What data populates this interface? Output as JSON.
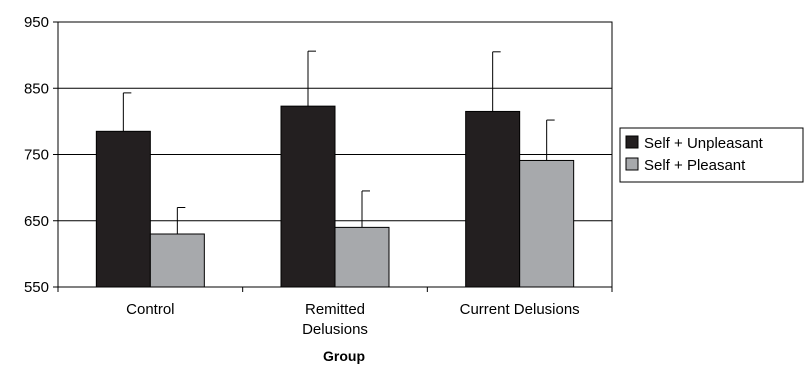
{
  "chart_data": {
    "type": "bar",
    "title": "",
    "xlabel": "Group",
    "ylabel": "",
    "categories": [
      [
        "Control"
      ],
      [
        "Remitted",
        "Delusions"
      ],
      [
        "Current Delusions"
      ]
    ],
    "series": [
      {
        "name": "Self + Unpleasant",
        "color": "#231f20",
        "values": [
          785,
          823,
          815
        ],
        "error_upper": [
          843,
          906,
          905
        ]
      },
      {
        "name": "Self + Pleasant",
        "color": "#a7a9ac",
        "values": [
          630,
          640,
          741
        ],
        "error_upper": [
          670,
          695,
          802
        ]
      }
    ],
    "ylim": [
      550,
      950
    ],
    "yticks": [
      550,
      650,
      750,
      850,
      950
    ],
    "grid": true,
    "legend_position": "right"
  }
}
